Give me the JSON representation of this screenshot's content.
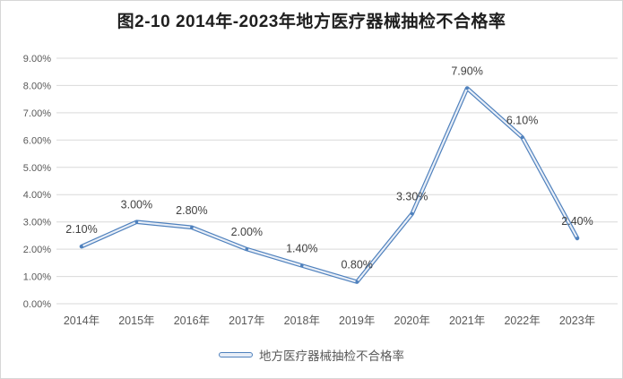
{
  "title": "图2-10 2014年-2023年地方医疗器械抽检不合格率",
  "legend": {
    "label": "地方医疗器械抽检不合格率"
  },
  "chart_data": {
    "type": "line",
    "title": "图2-10 2014年-2023年地方医疗器械抽检不合格率",
    "categories": [
      "2014年",
      "2015年",
      "2016年",
      "2017年",
      "2018年",
      "2019年",
      "2020年",
      "2021年",
      "2022年",
      "2023年"
    ],
    "series": [
      {
        "name": "地方医疗器械抽检不合格率",
        "values": [
          2.1,
          3.0,
          2.8,
          2.0,
          1.4,
          0.8,
          3.3,
          7.9,
          6.1,
          2.4
        ]
      }
    ],
    "data_labels": [
      "2.10%",
      "3.00%",
      "2.80%",
      "2.00%",
      "1.40%",
      "0.80%",
      "3.30%",
      "7.90%",
      "6.10%",
      "2.40%"
    ],
    "y_ticks": [
      "0.00%",
      "1.00%",
      "2.00%",
      "3.00%",
      "4.00%",
      "5.00%",
      "6.00%",
      "7.00%",
      "8.00%",
      "9.00%"
    ],
    "xlabel": "",
    "ylabel": "",
    "ylim": [
      0,
      9
    ],
    "grid": true,
    "legend_position": "bottom",
    "colors": {
      "line_edge": "#4f81bd",
      "line_core": "#e8eef7",
      "grid": "#d9d9d9",
      "tick_text": "#595959",
      "label_text": "#404040",
      "title_text": "#1f1f1f",
      "frame_border": "#d6d6d6"
    }
  }
}
